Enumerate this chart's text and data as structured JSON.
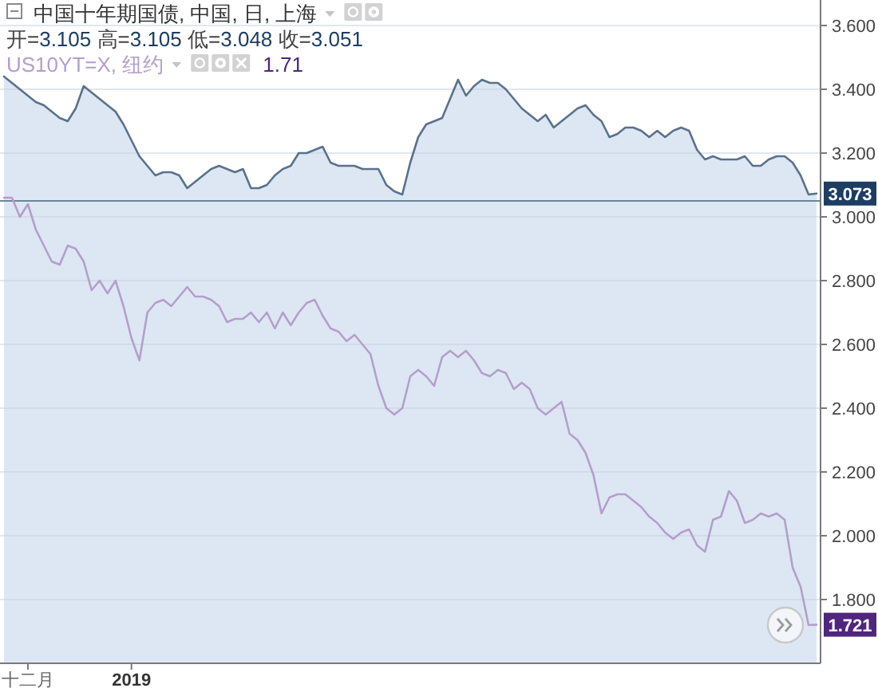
{
  "chart_data": {
    "type": "line",
    "categories": [
      null,
      null,
      null,
      "十二月",
      null,
      null,
      null,
      null,
      null,
      null,
      null,
      null,
      null,
      null,
      null,
      null,
      "2019",
      null,
      null,
      null,
      null,
      null,
      null,
      null,
      null,
      null,
      null,
      null,
      null,
      null,
      null,
      null,
      null,
      null,
      null,
      null,
      null,
      null,
      null,
      null,
      null,
      null,
      null,
      null,
      null,
      null,
      null,
      null,
      null,
      null,
      null,
      null,
      null,
      null,
      null,
      null,
      null,
      null,
      null,
      null,
      null,
      null,
      null,
      null,
      null,
      null,
      null,
      null,
      null,
      null,
      null,
      null,
      null,
      null,
      null,
      null,
      null,
      null,
      null,
      null,
      null,
      null,
      null,
      null,
      null,
      null,
      null,
      null,
      null,
      null,
      null,
      null,
      null,
      null,
      null,
      null,
      null,
      null,
      null,
      null,
      null,
      null,
      null
    ],
    "series": [
      {
        "name": "中国十年期国债, 中国, 日, 上海",
        "type": "area",
        "color": "#5b718b",
        "values": [
          3.44,
          3.42,
          3.4,
          3.38,
          3.36,
          3.35,
          3.33,
          3.31,
          3.3,
          3.34,
          3.41,
          3.39,
          3.37,
          3.35,
          3.33,
          3.29,
          3.24,
          3.19,
          3.16,
          3.13,
          3.14,
          3.14,
          3.13,
          3.09,
          3.11,
          3.13,
          3.15,
          3.16,
          3.15,
          3.14,
          3.15,
          3.09,
          3.09,
          3.1,
          3.13,
          3.15,
          3.16,
          3.2,
          3.2,
          3.21,
          3.22,
          3.17,
          3.16,
          3.16,
          3.16,
          3.15,
          3.15,
          3.15,
          3.1,
          3.08,
          3.07,
          3.17,
          3.25,
          3.29,
          3.3,
          3.31,
          3.37,
          3.43,
          3.38,
          3.41,
          3.43,
          3.42,
          3.42,
          3.4,
          3.37,
          3.34,
          3.32,
          3.3,
          3.32,
          3.28,
          3.3,
          3.32,
          3.34,
          3.35,
          3.32,
          3.3,
          3.25,
          3.26,
          3.28,
          3.28,
          3.27,
          3.25,
          3.27,
          3.25,
          3.27,
          3.28,
          3.27,
          3.21,
          3.18,
          3.19,
          3.18,
          3.18,
          3.18,
          3.19,
          3.16,
          3.16,
          3.18,
          3.19,
          3.19,
          3.17,
          3.13,
          3.07,
          3.073
        ],
        "value_labels": [
          null,
          null,
          null,
          null,
          null,
          null,
          null,
          null,
          null,
          null,
          null,
          null,
          null,
          null,
          null,
          null,
          null,
          null,
          null,
          null,
          null,
          null,
          null,
          null,
          null,
          null,
          null,
          null,
          null,
          null,
          null,
          null,
          null,
          null,
          null,
          null,
          null,
          null,
          null,
          null,
          null,
          null,
          null,
          null,
          null,
          null,
          null,
          null,
          null,
          null,
          null,
          null,
          null,
          null,
          null,
          null,
          null,
          null,
          null,
          null,
          null,
          null,
          null,
          null,
          null,
          null,
          null,
          null,
          null,
          null,
          null,
          null,
          null,
          null,
          null,
          null,
          null,
          null,
          null,
          null,
          null,
          null,
          null,
          null,
          null,
          null,
          null,
          null,
          null,
          null,
          null,
          null,
          null,
          null,
          null,
          null,
          null,
          null,
          null,
          null,
          null,
          null,
          "3.073"
        ]
      },
      {
        "name": "US10YT=X, 纽约",
        "type": "line",
        "color": "#b49fcb",
        "values": [
          3.06,
          3.06,
          3.0,
          3.04,
          2.96,
          2.91,
          2.86,
          2.85,
          2.91,
          2.9,
          2.86,
          2.77,
          2.8,
          2.76,
          2.8,
          2.72,
          2.62,
          2.55,
          2.7,
          2.73,
          2.74,
          2.72,
          2.75,
          2.78,
          2.75,
          2.75,
          2.74,
          2.72,
          2.67,
          2.68,
          2.68,
          2.7,
          2.67,
          2.7,
          2.65,
          2.7,
          2.66,
          2.7,
          2.73,
          2.74,
          2.69,
          2.65,
          2.64,
          2.61,
          2.63,
          2.6,
          2.57,
          2.47,
          2.4,
          2.38,
          2.4,
          2.5,
          2.52,
          2.5,
          2.47,
          2.56,
          2.58,
          2.56,
          2.58,
          2.55,
          2.51,
          2.5,
          2.52,
          2.51,
          2.46,
          2.48,
          2.46,
          2.4,
          2.38,
          2.4,
          2.42,
          2.32,
          2.3,
          2.26,
          2.19,
          2.07,
          2.12,
          2.13,
          2.13,
          2.11,
          2.09,
          2.06,
          2.04,
          2.01,
          1.99,
          2.01,
          2.02,
          1.97,
          1.95,
          2.05,
          2.06,
          2.14,
          2.11,
          2.04,
          2.05,
          2.07,
          2.06,
          2.07,
          2.05,
          1.9,
          1.84,
          1.72,
          1.721
        ],
        "value_labels": [
          null,
          null,
          null,
          null,
          null,
          null,
          null,
          null,
          null,
          null,
          null,
          null,
          null,
          null,
          null,
          null,
          null,
          null,
          null,
          null,
          null,
          null,
          null,
          null,
          null,
          null,
          null,
          null,
          null,
          null,
          null,
          null,
          null,
          null,
          null,
          null,
          null,
          null,
          null,
          null,
          null,
          null,
          null,
          null,
          null,
          null,
          null,
          null,
          null,
          null,
          null,
          null,
          null,
          null,
          null,
          null,
          null,
          null,
          null,
          null,
          null,
          null,
          null,
          null,
          null,
          null,
          null,
          null,
          null,
          null,
          null,
          null,
          null,
          null,
          null,
          null,
          null,
          null,
          null,
          null,
          null,
          null,
          null,
          null,
          null,
          null,
          null,
          null,
          null,
          null,
          null,
          null,
          null,
          null,
          null,
          null,
          null,
          null,
          null,
          null,
          null,
          null,
          "1.721"
        ]
      }
    ],
    "annotations": [
      "开=3.105 高=3.105 低=3.048 收=3.051",
      "1.71"
    ],
    "ylim": [
      1.6,
      3.68
    ],
    "yticks": [
      {
        "value": 1.8,
        "label": "1.800"
      },
      {
        "value": 2.0,
        "label": "2.000"
      },
      {
        "value": 2.2,
        "label": "2.200"
      },
      {
        "value": 2.4,
        "label": "2.400"
      },
      {
        "value": 2.6,
        "label": "2.600"
      },
      {
        "value": 2.8,
        "label": "2.800"
      },
      {
        "value": 3.0,
        "label": "3.000"
      },
      {
        "value": 3.2,
        "label": "3.200"
      },
      {
        "value": 3.4,
        "label": "3.400"
      },
      {
        "value": 3.6,
        "label": "3.600"
      }
    ],
    "grid": "y",
    "legend": "top left",
    "ref_lines": [
      {
        "axis": "y",
        "value": 3.05,
        "color": "#6d849b"
      }
    ]
  }
}
